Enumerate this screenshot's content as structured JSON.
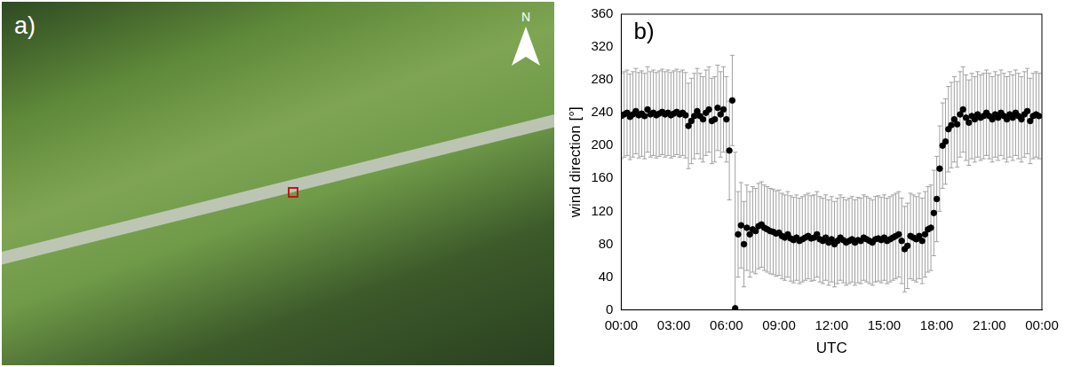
{
  "image_panel": {
    "label": "a)",
    "north_arrow": "N"
  },
  "chart_data": {
    "type": "scatter",
    "panel_label": "b)",
    "x_label": "UTC",
    "y_label": "wind direction [°]",
    "color": "#000000",
    "error_color": "#a0a0a0",
    "grid": false,
    "xlim": [
      0,
      1440
    ],
    "xticks": [
      {
        "value": 0,
        "label": "00:00"
      },
      {
        "value": 180,
        "label": "03:00"
      },
      {
        "value": 360,
        "label": "06:00"
      },
      {
        "value": 540,
        "label": "09:00"
      },
      {
        "value": 720,
        "label": "12:00"
      },
      {
        "value": 900,
        "label": "15:00"
      },
      {
        "value": 1080,
        "label": "18:00"
      },
      {
        "value": 1260,
        "label": "21:00"
      },
      {
        "value": 1440,
        "label": "00:00"
      }
    ],
    "ylim": [
      0,
      360
    ],
    "yticks": [
      0,
      40,
      80,
      120,
      160,
      200,
      240,
      280,
      320,
      360
    ],
    "x": [
      0,
      10,
      20,
      30,
      40,
      50,
      60,
      70,
      80,
      90,
      100,
      110,
      120,
      130,
      140,
      150,
      160,
      170,
      180,
      190,
      200,
      210,
      220,
      230,
      240,
      250,
      260,
      270,
      280,
      290,
      300,
      310,
      320,
      330,
      340,
      350,
      360,
      370,
      380,
      390,
      400,
      410,
      420,
      430,
      440,
      450,
      460,
      470,
      480,
      490,
      500,
      510,
      520,
      530,
      540,
      550,
      560,
      570,
      580,
      590,
      600,
      610,
      620,
      630,
      640,
      650,
      660,
      670,
      680,
      690,
      700,
      710,
      720,
      730,
      740,
      750,
      760,
      770,
      780,
      790,
      800,
      810,
      820,
      830,
      840,
      850,
      860,
      870,
      880,
      890,
      900,
      910,
      920,
      930,
      940,
      950,
      960,
      970,
      980,
      990,
      1000,
      1010,
      1020,
      1030,
      1040,
      1050,
      1060,
      1070,
      1080,
      1090,
      1100,
      1110,
      1120,
      1130,
      1140,
      1150,
      1160,
      1170,
      1180,
      1190,
      1200,
      1210,
      1220,
      1230,
      1240,
      1250,
      1260,
      1270,
      1280,
      1290,
      1300,
      1310,
      1320,
      1330,
      1340,
      1350,
      1360,
      1370,
      1380,
      1390,
      1400,
      1410,
      1420,
      1430
    ],
    "values": [
      236,
      238,
      240,
      235,
      238,
      242,
      237,
      239,
      236,
      244,
      238,
      240,
      237,
      239,
      241,
      238,
      240,
      237,
      239,
      241,
      238,
      240,
      237,
      224,
      230,
      236,
      242,
      236,
      232,
      240,
      244,
      230,
      232,
      246,
      238,
      244,
      232,
      194,
      255,
      2,
      92,
      103,
      80,
      100,
      92,
      98,
      96,
      102,
      104,
      100,
      98,
      96,
      95,
      93,
      94,
      90,
      88,
      92,
      87,
      85,
      88,
      84,
      86,
      88,
      90,
      87,
      88,
      92,
      86,
      84,
      88,
      82,
      86,
      80,
      84,
      88,
      85,
      82,
      84,
      86,
      82,
      85,
      84,
      88,
      86,
      84,
      82,
      86,
      87,
      85,
      88,
      84,
      86,
      88,
      90,
      92,
      84,
      74,
      78,
      90,
      88,
      86,
      90,
      84,
      92,
      98,
      100,
      118,
      135,
      172,
      200,
      205,
      220,
      225,
      232,
      226,
      238,
      244,
      234,
      228,
      236,
      232,
      238,
      234,
      236,
      240,
      236,
      232,
      238,
      234,
      240,
      236,
      232,
      238,
      234,
      240,
      236,
      232,
      238,
      242,
      230,
      236,
      238,
      236
    ],
    "error": [
      52,
      52,
      52,
      52,
      52,
      52,
      52,
      52,
      52,
      52,
      52,
      52,
      52,
      52,
      52,
      52,
      52,
      52,
      52,
      52,
      52,
      52,
      52,
      52,
      52,
      52,
      52,
      52,
      52,
      52,
      52,
      52,
      52,
      52,
      52,
      52,
      52,
      60,
      55,
      190,
      52,
      52,
      52,
      52,
      52,
      52,
      52,
      52,
      52,
      52,
      52,
      52,
      52,
      52,
      52,
      52,
      52,
      52,
      52,
      52,
      52,
      52,
      52,
      52,
      52,
      52,
      52,
      52,
      52,
      52,
      52,
      52,
      52,
      52,
      52,
      52,
      52,
      52,
      52,
      52,
      52,
      52,
      52,
      52,
      52,
      52,
      52,
      52,
      52,
      52,
      52,
      52,
      52,
      52,
      52,
      52,
      52,
      52,
      52,
      52,
      52,
      52,
      52,
      52,
      52,
      52,
      52,
      52,
      52,
      52,
      52,
      52,
      52,
      52,
      52,
      52,
      52,
      52,
      52,
      52,
      52,
      52,
      52,
      52,
      52,
      52,
      52,
      52,
      52,
      52,
      52,
      52,
      52,
      52,
      52,
      52,
      52,
      52,
      52,
      52,
      52,
      52,
      52,
      52
    ]
  }
}
